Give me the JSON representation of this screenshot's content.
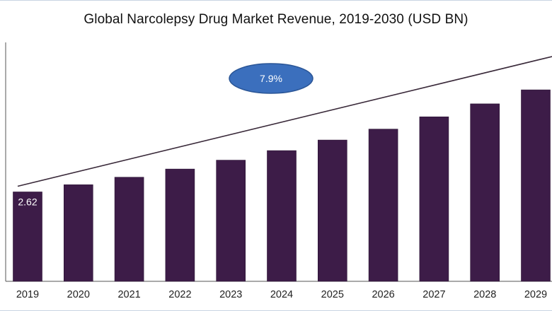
{
  "chart_data": {
    "type": "bar",
    "title": "Global Narcolepsy Drug Market Revenue, 2019-2030 (USD BN)",
    "categories": [
      "2019",
      "2020",
      "2021",
      "2022",
      "2023",
      "2024",
      "2025",
      "2026",
      "2027",
      "2028",
      "2029"
    ],
    "values": [
      2.62,
      2.83,
      3.05,
      3.29,
      3.55,
      3.83,
      4.14,
      4.46,
      4.82,
      5.2,
      5.61
    ],
    "data_labels": [
      "2.62",
      "",
      "",
      "",
      "",
      "",
      "",
      "",
      "",
      "",
      ""
    ],
    "annotation": "7.9%",
    "xlabel": "",
    "ylabel": "",
    "ylim": [
      0,
      7.0
    ],
    "grid": false,
    "colors": {
      "bar": "#3d1c48",
      "bubble_fill": "#3b6fbd",
      "bubble_stroke": "#2a5596",
      "trend_line": "#3a2a3a",
      "axis": "#555555"
    }
  }
}
